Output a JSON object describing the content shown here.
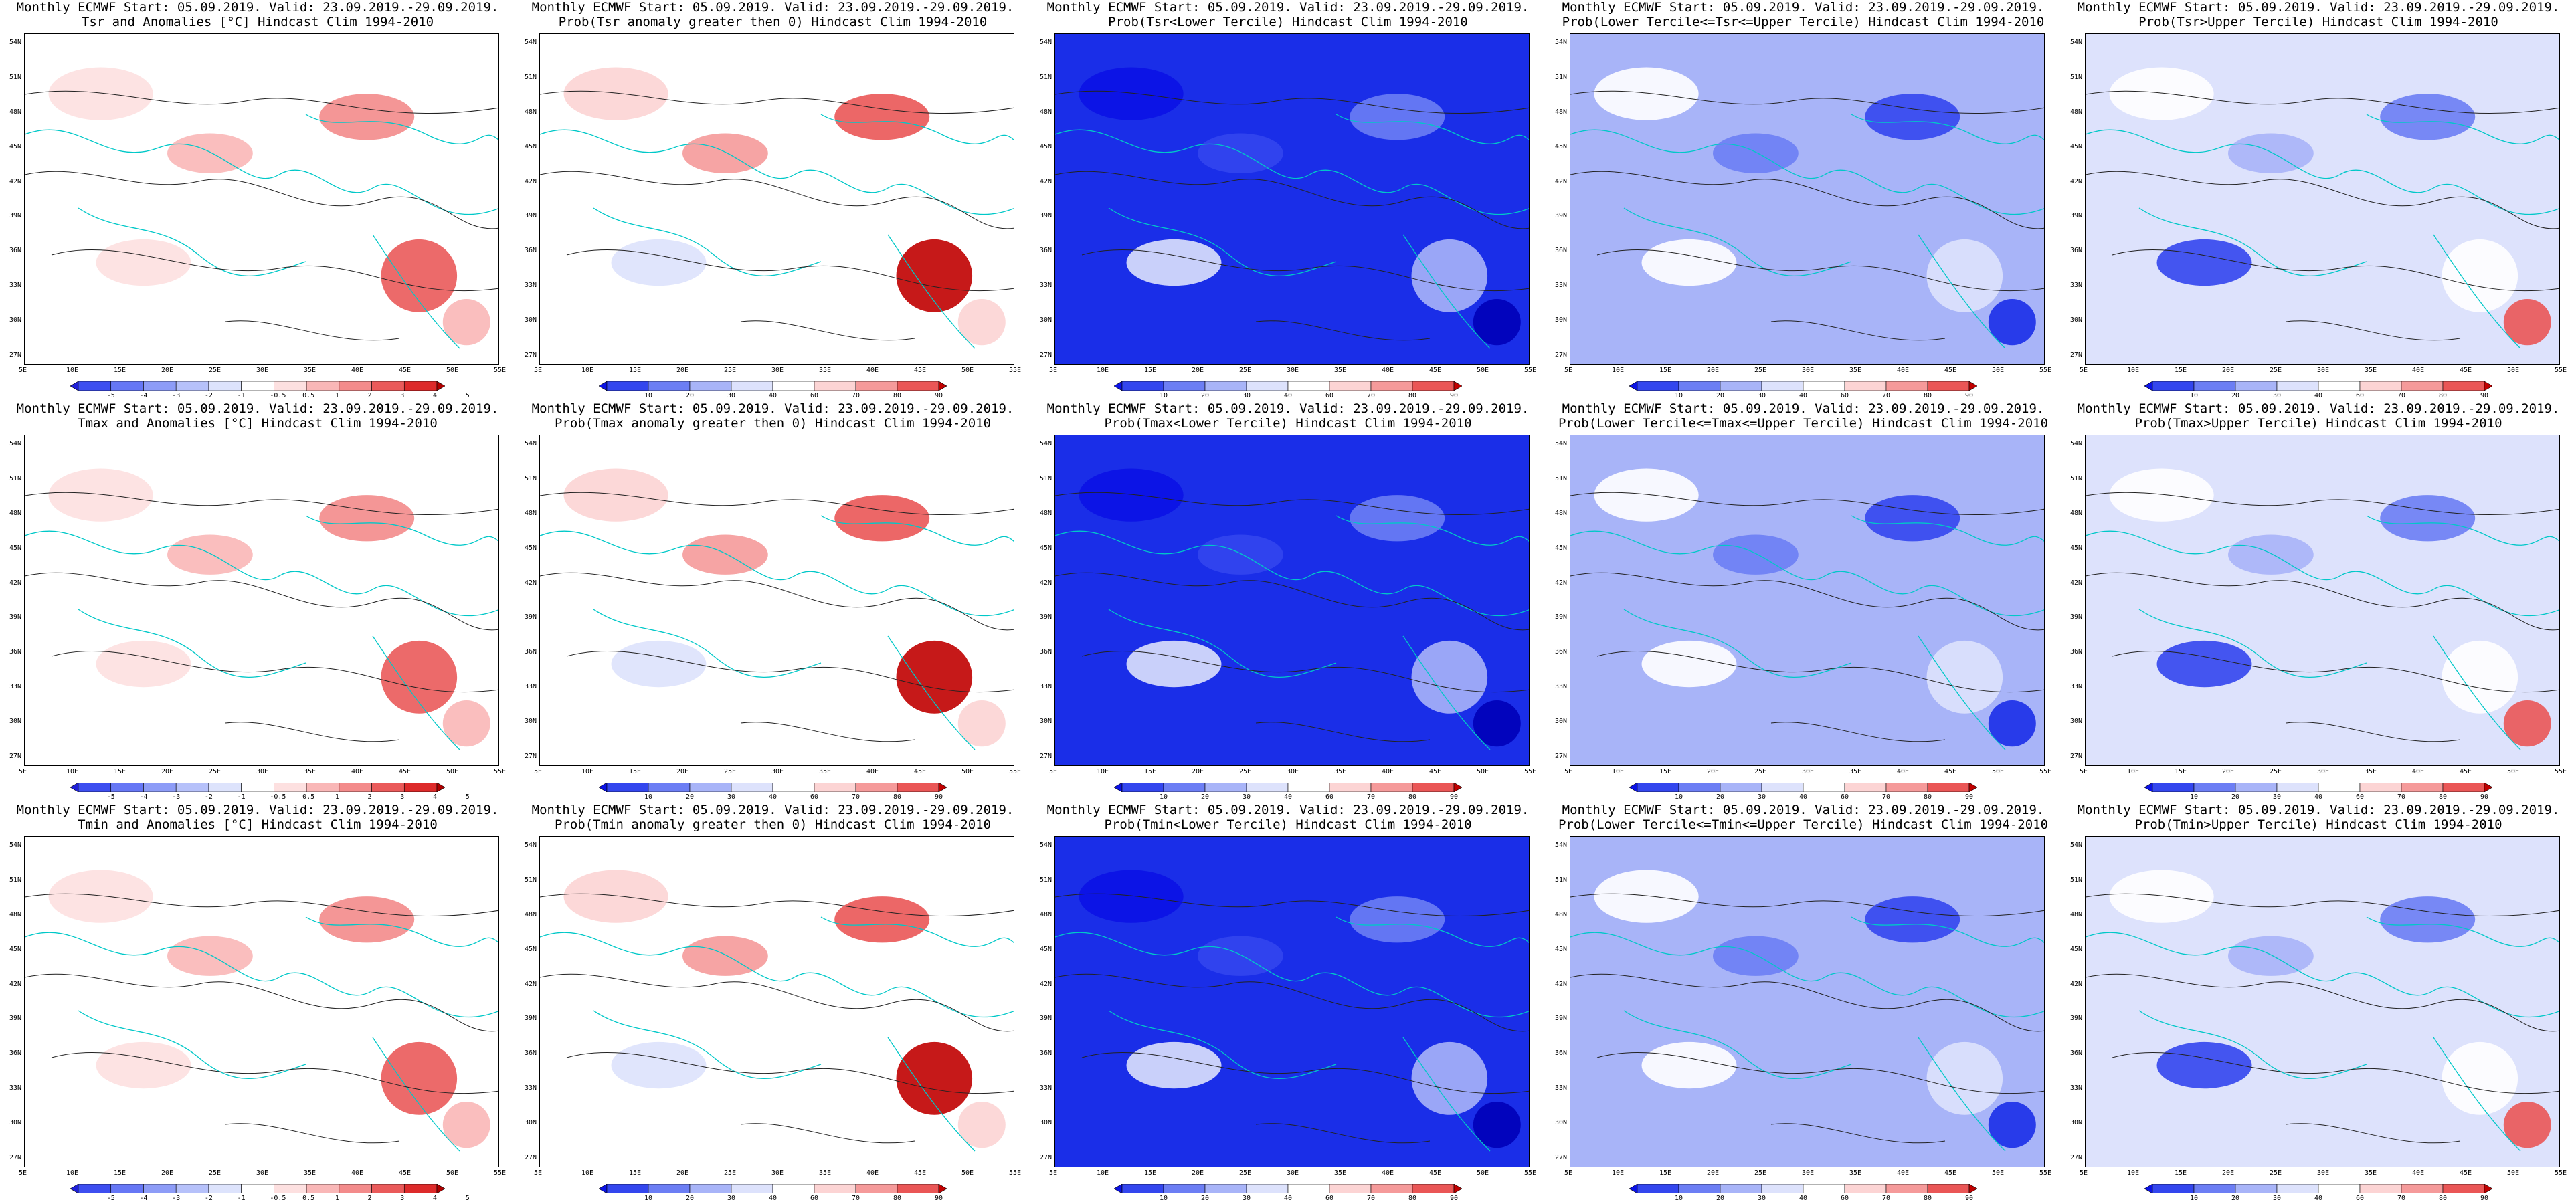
{
  "axes": {
    "lat_labels": [
      "54N",
      "51N",
      "48N",
      "45N",
      "42N",
      "39N",
      "36N",
      "33N",
      "30N",
      "27N"
    ],
    "lon_labels": [
      "5E",
      "10E",
      "15E",
      "20E",
      "25E",
      "30E",
      "35E",
      "40E",
      "45E",
      "50E",
      "55E"
    ]
  },
  "colorbars": {
    "anomaly": {
      "labels": [
        "-5",
        "-4",
        "-3",
        "-2",
        "-1",
        "-0.5",
        "0.5",
        "1",
        "2",
        "3",
        "4",
        "5"
      ],
      "colors": [
        "#1f1fd8",
        "#3d4ef0",
        "#6677f5",
        "#8d9cf7",
        "#b6c1fa",
        "#dde3fc",
        "#ffffff",
        "#fde0e0",
        "#f9b7b7",
        "#f38b8b",
        "#ea5a5a",
        "#dd2a2a",
        "#b00000"
      ]
    },
    "probability": {
      "labels": [
        "10",
        "20",
        "30",
        "40",
        "60",
        "70",
        "80",
        "90"
      ],
      "colors": [
        "#0b12e6",
        "#3346ee",
        "#6c7ef4",
        "#a8b4f8",
        "#dde2fc",
        "#ffffff",
        "#fcd4d4",
        "#f59a9a",
        "#ea5656",
        "#c00000"
      ]
    }
  },
  "panels": [
    {
      "id": "tsr-anom",
      "title1": "Monthly ECMWF Start: 05.09.2019. Valid: 23.09.2019.-29.09.2019.",
      "title2": "Tsr and Anomalies [°C] Hindcast Clim 1994-2010",
      "scheme": "red",
      "bar": "anomaly"
    },
    {
      "id": "tsr-prob-gt0",
      "title1": "Monthly ECMWF Start: 05.09.2019. Valid: 23.09.2019.-29.09.2019.",
      "title2": "Prob(Tsr anomaly greater then 0) Hindcast Clim 1994-2010",
      "scheme": "redprob",
      "bar": "probability"
    },
    {
      "id": "tsr-lower",
      "title1": "Monthly ECMWF Start: 05.09.2019. Valid: 23.09.2019.-29.09.2019.",
      "title2": "Prob(Tsr<Lower Tercile) Hindcast Clim 1994-2010",
      "scheme": "deepblue",
      "bar": "probability"
    },
    {
      "id": "tsr-middle",
      "title1": "Monthly ECMWF Start: 05.09.2019. Valid: 23.09.2019.-29.09.2019.",
      "title2": "Prob(Lower Tercile<=Tsr<=Upper Tercile) Hindcast Clim 1994-2010",
      "scheme": "midblue",
      "bar": "probability"
    },
    {
      "id": "tsr-upper",
      "title1": "Monthly ECMWF Start: 05.09.2019. Valid: 23.09.2019.-29.09.2019.",
      "title2": "Prob(Tsr>Upper Tercile) Hindcast Clim 1994-2010",
      "scheme": "lightblue",
      "bar": "probability"
    },
    {
      "id": "tmax-anom",
      "title1": "Monthly ECMWF Start: 05.09.2019. Valid: 23.09.2019.-29.09.2019.",
      "title2": "Tmax and Anomalies [°C] Hindcast Clim 1994-2010",
      "scheme": "red",
      "bar": "anomaly"
    },
    {
      "id": "tmax-prob-gt0",
      "title1": "Monthly ECMWF Start: 05.09.2019. Valid: 23.09.2019.-29.09.2019.",
      "title2": "Prob(Tmax anomaly greater then 0) Hindcast Clim 1994-2010",
      "scheme": "redprob",
      "bar": "probability"
    },
    {
      "id": "tmax-lower",
      "title1": "Monthly ECMWF Start: 05.09.2019. Valid: 23.09.2019.-29.09.2019.",
      "title2": "Prob(Tmax<Lower Tercile) Hindcast Clim 1994-2010",
      "scheme": "deepblue",
      "bar": "probability"
    },
    {
      "id": "tmax-middle",
      "title1": "Monthly ECMWF Start: 05.09.2019. Valid: 23.09.2019.-29.09.2019.",
      "title2": "Prob(Lower Tercile<=Tmax<=Upper Tercile) Hindcast Clim 1994-2010",
      "scheme": "midblue",
      "bar": "probability"
    },
    {
      "id": "tmax-upper",
      "title1": "Monthly ECMWF Start: 05.09.2019. Valid: 23.09.2019.-29.09.2019.",
      "title2": "Prob(Tmax>Upper Tercile) Hindcast Clim 1994-2010",
      "scheme": "lightblue",
      "bar": "probability"
    },
    {
      "id": "tmin-anom",
      "title1": "Monthly ECMWF Start: 05.09.2019. Valid: 23.09.2019.-29.09.2019.",
      "title2": "Tmin and Anomalies [°C] Hindcast Clim 1994-2010",
      "scheme": "red",
      "bar": "anomaly"
    },
    {
      "id": "tmin-prob-gt0",
      "title1": "Monthly ECMWF Start: 05.09.2019. Valid: 23.09.2019.-29.09.2019.",
      "title2": "Prob(Tmin anomaly greater then 0) Hindcast Clim 1994-2010",
      "scheme": "redprob",
      "bar": "probability"
    },
    {
      "id": "tmin-lower",
      "title1": "Monthly ECMWF Start: 05.09.2019. Valid: 23.09.2019.-29.09.2019.",
      "title2": "Prob(Tmin<Lower Tercile) Hindcast Clim 1994-2010",
      "scheme": "deepblue",
      "bar": "probability"
    },
    {
      "id": "tmin-middle",
      "title1": "Monthly ECMWF Start: 05.09.2019. Valid: 23.09.2019.-29.09.2019.",
      "title2": "Prob(Lower Tercile<=Tmin<=Upper Tercile) Hindcast Clim 1994-2010",
      "scheme": "midblue",
      "bar": "probability"
    },
    {
      "id": "tmin-upper",
      "title1": "Monthly ECMWF Start: 05.09.2019. Valid: 23.09.2019.-29.09.2019.",
      "title2": "Prob(Tmin>Upper Tercile) Hindcast Clim 1994-2010",
      "scheme": "lightblue",
      "bar": "probability"
    }
  ],
  "schemes": {
    "red": {
      "bg": "#ffffff",
      "fills": [
        "#fde0e0",
        "#f9b7b7",
        "#f38b8b",
        "#ea5a5a",
        "#fde0e0",
        "#f9b7b7"
      ]
    },
    "redprob": {
      "bg": "#ffffff",
      "fills": [
        "#fcd4d4",
        "#f59a9a",
        "#ea5656",
        "#c00000",
        "#dde2fc",
        "#fcd4d4"
      ]
    },
    "deepblue": {
      "bg": "#1a2ee8",
      "fills": [
        "#0b12e6",
        "#3346ee",
        "#6c7ef4",
        "#a8b4f8",
        "#dde2fc",
        "#0000b8"
      ]
    },
    "midblue": {
      "bg": "#a8b4f8",
      "fills": [
        "#ffffff",
        "#6c7ef4",
        "#3346ee",
        "#dde2fc",
        "#ffffff",
        "#1a2ee8"
      ]
    },
    "lightblue": {
      "bg": "#dde2fc",
      "fills": [
        "#ffffff",
        "#a8b4f8",
        "#6c7ef4",
        "#ffffff",
        "#3346ee",
        "#ea5656"
      ]
    }
  }
}
